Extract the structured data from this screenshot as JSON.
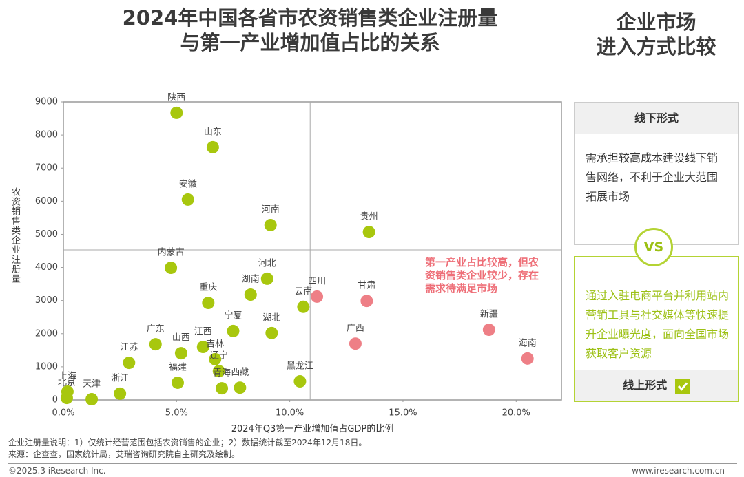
{
  "header": {
    "title_lines": [
      "2024年中国各省市农资销售类企业注册量",
      "与第一产业增加值占比的关系"
    ],
    "side_title_lines": [
      "企业市场",
      "进入方式比较"
    ]
  },
  "chart_data": {
    "type": "scatter",
    "x_label": "2024年Q3第一产业增加值占GDP的比例",
    "y_label": "农资销售类企业注册量",
    "point_labels": [
      "陕西",
      "山东",
      "安徽",
      "河南",
      "贵州",
      "内蒙古",
      "河北",
      "湖南",
      "重庆",
      "云南",
      "四川",
      "甘肃",
      "宁夏",
      "湖北",
      "广西",
      "新疆",
      "海南",
      "广东",
      "山西",
      "江西",
      "吉林",
      "辽宁",
      "江苏",
      "福建",
      "青海",
      "西藏",
      "黑龙江",
      "浙江",
      "上海",
      "北京",
      "天津"
    ],
    "x": [
      5.0,
      6.6,
      5.5,
      9.15,
      13.5,
      4.75,
      9.0,
      8.27,
      6.4,
      10.6,
      11.2,
      13.4,
      7.5,
      9.2,
      12.9,
      18.8,
      20.5,
      4.07,
      5.2,
      6.17,
      6.7,
      6.87,
      2.9,
      5.05,
      7.0,
      7.8,
      10.45,
      2.5,
      0.18,
      0.15,
      1.25
    ],
    "values": [
      8670,
      7630,
      6050,
      5280,
      5070,
      3990,
      3660,
      3180,
      2930,
      2810,
      3120,
      2990,
      2080,
      2020,
      1700,
      2120,
      1250,
      1680,
      1410,
      1600,
      1230,
      870,
      1120,
      520,
      350,
      370,
      560,
      190,
      250,
      60,
      20
    ],
    "colors": [
      "#a8c70e",
      "#a8c70e",
      "#a8c70e",
      "#a8c70e",
      "#a8c70e",
      "#a8c70e",
      "#a8c70e",
      "#a8c70e",
      "#a8c70e",
      "#a8c70e",
      "#ee7f86",
      "#ee7f86",
      "#a8c70e",
      "#a8c70e",
      "#ee7f86",
      "#ee7f86",
      "#ee7f86",
      "#a8c70e",
      "#a8c70e",
      "#a8c70e",
      "#a8c70e",
      "#a8c70e",
      "#a8c70e",
      "#a8c70e",
      "#a8c70e",
      "#a8c70e",
      "#a8c70e",
      "#a8c70e",
      "#a8c70e",
      "#a8c70e",
      "#a8c70e"
    ],
    "xlim": [
      0,
      22
    ],
    "ylim": [
      0,
      9000
    ],
    "xticks": [
      {
        "value": 0,
        "label": "0.0%"
      },
      {
        "value": 5,
        "label": "5.0%"
      },
      {
        "value": 10,
        "label": "10.0%"
      },
      {
        "value": 15,
        "label": "15.0%"
      },
      {
        "value": 20,
        "label": "20.0%"
      }
    ],
    "yticks": [
      0,
      1000,
      2000,
      3000,
      4000,
      5000,
      6000,
      7000,
      8000,
      9000
    ],
    "x_reference": 10.9,
    "y_reference": 4530,
    "annotation_lines": [
      "第一产业占比较高，但农",
      "资销售类企业较少，存在",
      "需求待满足市场"
    ]
  },
  "panel": {
    "offline_title": "线下形式",
    "offline_text": "需承担较高成本建设线下销售网络，不利于企业大范围拓展市场",
    "vs": "VS",
    "online_text": "通过入驻电商平台并利用站内营销工具与社交媒体等快速提升企业曝光度，面向全国市场获取客户资源",
    "online_title": "线上形式"
  },
  "footer": {
    "notes": [
      "企业注册量说明：1）仅统计经营范围包括农资销售的企业；2）数据统计截至2024年12月18日。",
      "来源：企查查，国家统计局，艾瑞咨询研究院自主研究及绘制。"
    ],
    "copyright": "©2025.3 iResearch Inc.",
    "website": "www.iresearch.com.cn"
  }
}
